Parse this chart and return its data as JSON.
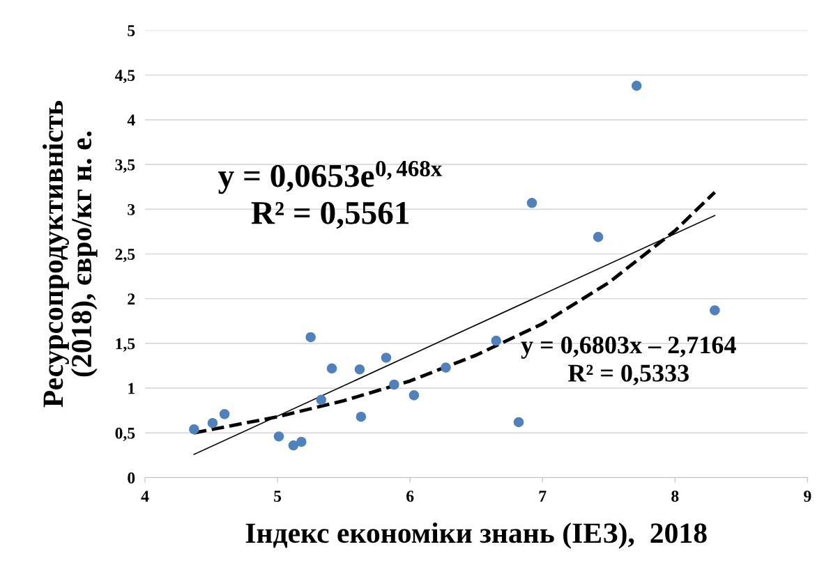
{
  "chart_data": {
    "type": "scatter",
    "xlabel": "Індекс економіки знань (ІЕЗ),  2018",
    "ylabel": "Ресурсопродуктивність\n(2018), євро/кг н. е.",
    "xlim": [
      4,
      9
    ],
    "xticks": [
      4,
      5,
      6,
      7,
      8,
      9
    ],
    "ylim": [
      0,
      5
    ],
    "yticks": [
      0,
      {
        "value": 0.5,
        "label": "0,5"
      },
      1,
      {
        "value": 1.5,
        "label": "1,5"
      },
      2,
      {
        "value": 2.5,
        "label": "2,5"
      },
      3,
      {
        "value": 3.5,
        "label": "3,5"
      },
      4,
      {
        "value": 4.5,
        "label": "4,5"
      },
      5
    ],
    "grid": "y",
    "series": [
      {
        "color": "#4f81bd",
        "marker": "circle",
        "x": [
          4.37,
          4.51,
          4.6,
          5.01,
          5.12,
          5.18,
          5.25,
          5.33,
          5.41,
          5.62,
          5.63,
          5.82,
          5.88,
          6.03,
          6.27,
          6.65,
          6.82,
          6.92,
          7.42,
          7.71,
          8.3
        ],
        "values": [
          0.54,
          0.61,
          0.71,
          0.46,
          0.36,
          0.4,
          1.57,
          0.87,
          1.22,
          1.21,
          0.68,
          1.34,
          1.04,
          0.92,
          1.23,
          1.53,
          0.62,
          3.07,
          2.69,
          4.38,
          1.87
        ]
      },
      {
        "type": "line",
        "color": "#000000",
        "line_style": "solid",
        "x": [
          4.37,
          8.3
        ],
        "values": [
          0.26,
          2.93
        ]
      },
      {
        "type": "line",
        "color": "#000000",
        "line_style": "dashed",
        "x": [
          4.37,
          5,
          5.5,
          6,
          6.5,
          7,
          7.5,
          8,
          8.3
        ],
        "values": [
          0.5,
          0.68,
          0.86,
          1.08,
          1.37,
          1.72,
          2.18,
          2.76,
          3.19
        ]
      }
    ],
    "annotations": [
      "y = 0,0653e$^{0,468x}$\nR² = 0,5561",
      "y = 0,6803x – 2,7164\nR² = 0,5333"
    ]
  }
}
